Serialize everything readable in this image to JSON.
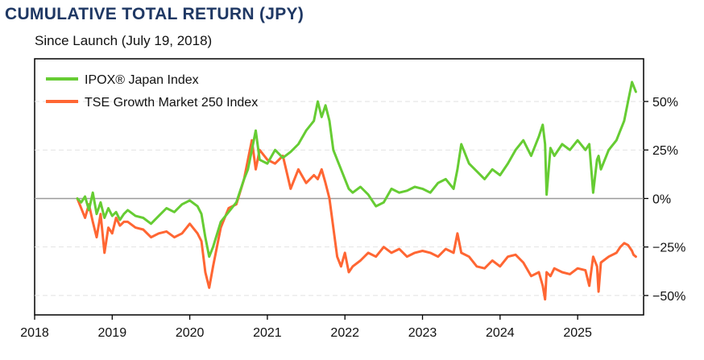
{
  "chart_data": {
    "type": "line",
    "title": "CUMULATIVE TOTAL RETURN (JPY)",
    "subtitle": "Since Launch (July 19, 2018)",
    "xlabel": "",
    "ylabel": "",
    "xlim": [
      2018.0,
      2025.85
    ],
    "ylim": [
      -60,
      72
    ],
    "x_ticks": [
      2018,
      2019,
      2020,
      2021,
      2022,
      2023,
      2024,
      2025
    ],
    "x_tick_labels": [
      "2018",
      "2019",
      "2020",
      "2021",
      "2022",
      "2023",
      "2024",
      "2025"
    ],
    "y_ticks": [
      50,
      25,
      0,
      -25,
      -50
    ],
    "y_tick_labels": [
      "50%",
      "25%",
      "0%",
      "−25%",
      "−50%"
    ],
    "grid": "horizontal dashed",
    "legend_position": "top-left",
    "series": [
      {
        "name": "IPOX® Japan Index",
        "color": "#66cc33",
        "x": [
          2018.55,
          2018.6,
          2018.65,
          2018.7,
          2018.75,
          2018.8,
          2018.85,
          2018.9,
          2018.95,
          2019.0,
          2019.05,
          2019.1,
          2019.15,
          2019.2,
          2019.3,
          2019.4,
          2019.5,
          2019.6,
          2019.7,
          2019.8,
          2019.9,
          2020.0,
          2020.1,
          2020.15,
          2020.2,
          2020.25,
          2020.3,
          2020.4,
          2020.5,
          2020.6,
          2020.7,
          2020.75,
          2020.8,
          2020.85,
          2020.9,
          2021.0,
          2021.1,
          2021.2,
          2021.3,
          2021.4,
          2021.5,
          2021.6,
          2021.65,
          2021.7,
          2021.75,
          2021.8,
          2021.85,
          2021.9,
          2021.95,
          2022.0,
          2022.05,
          2022.1,
          2022.2,
          2022.3,
          2022.4,
          2022.5,
          2022.6,
          2022.7,
          2022.8,
          2022.9,
          2023.0,
          2023.1,
          2023.2,
          2023.3,
          2023.4,
          2023.45,
          2023.5,
          2023.6,
          2023.7,
          2023.8,
          2023.9,
          2024.0,
          2024.1,
          2024.2,
          2024.3,
          2024.4,
          2024.5,
          2024.55,
          2024.58,
          2024.6,
          2024.65,
          2024.7,
          2024.8,
          2024.9,
          2025.0,
          2025.1,
          2025.15,
          2025.2,
          2025.25,
          2025.27,
          2025.3,
          2025.4,
          2025.5,
          2025.55,
          2025.6,
          2025.65,
          2025.7,
          2025.72,
          2025.75
        ],
        "y": [
          0,
          -2,
          1,
          -6,
          3,
          -8,
          -2,
          -10,
          -5,
          -9,
          -7,
          -11,
          -8,
          -6,
          -9,
          -10,
          -13,
          -9,
          -5,
          -7,
          -3,
          -1,
          -4,
          -8,
          -20,
          -30,
          -25,
          -12,
          -7,
          -2,
          10,
          15,
          25,
          35,
          20,
          18,
          25,
          21,
          24,
          28,
          35,
          40,
          50,
          42,
          48,
          40,
          25,
          20,
          15,
          10,
          5,
          3,
          6,
          2,
          -4,
          -2,
          5,
          3,
          4,
          6,
          5,
          3,
          8,
          10,
          5,
          15,
          28,
          18,
          14,
          10,
          15,
          12,
          18,
          25,
          30,
          22,
          32,
          38,
          28,
          2,
          26,
          22,
          28,
          25,
          30,
          25,
          28,
          3,
          20,
          22,
          15,
          25,
          30,
          35,
          40,
          50,
          60,
          58,
          55
        ]
      },
      {
        "name": "TSE Growth Market 250 Index",
        "color": "#ff6633",
        "x": [
          2018.55,
          2018.6,
          2018.65,
          2018.7,
          2018.75,
          2018.8,
          2018.85,
          2018.9,
          2018.95,
          2019.0,
          2019.05,
          2019.1,
          2019.15,
          2019.2,
          2019.3,
          2019.4,
          2019.5,
          2019.6,
          2019.7,
          2019.8,
          2019.9,
          2020.0,
          2020.1,
          2020.15,
          2020.2,
          2020.25,
          2020.3,
          2020.4,
          2020.5,
          2020.6,
          2020.7,
          2020.75,
          2020.8,
          2020.85,
          2020.9,
          2021.0,
          2021.1,
          2021.2,
          2021.3,
          2021.4,
          2021.5,
          2021.6,
          2021.65,
          2021.7,
          2021.75,
          2021.8,
          2021.85,
          2021.9,
          2021.95,
          2022.0,
          2022.05,
          2022.1,
          2022.2,
          2022.3,
          2022.4,
          2022.5,
          2022.6,
          2022.7,
          2022.8,
          2022.9,
          2023.0,
          2023.1,
          2023.2,
          2023.3,
          2023.4,
          2023.45,
          2023.5,
          2023.6,
          2023.7,
          2023.8,
          2023.9,
          2024.0,
          2024.1,
          2024.2,
          2024.3,
          2024.4,
          2024.5,
          2024.55,
          2024.58,
          2024.6,
          2024.65,
          2024.7,
          2024.8,
          2024.9,
          2025.0,
          2025.1,
          2025.15,
          2025.2,
          2025.25,
          2025.27,
          2025.3,
          2025.4,
          2025.5,
          2025.55,
          2025.6,
          2025.65,
          2025.7,
          2025.72,
          2025.75
        ],
        "y": [
          0,
          -5,
          -10,
          -3,
          -12,
          -20,
          -8,
          -28,
          -15,
          -18,
          -10,
          -14,
          -12,
          -12,
          -15,
          -16,
          -20,
          -18,
          -17,
          -20,
          -18,
          -13,
          -18,
          -22,
          -38,
          -46,
          -35,
          -15,
          -5,
          -3,
          10,
          20,
          30,
          15,
          25,
          20,
          18,
          22,
          5,
          15,
          8,
          12,
          10,
          15,
          8,
          0,
          -15,
          -30,
          -35,
          -28,
          -38,
          -35,
          -32,
          -28,
          -30,
          -25,
          -28,
          -26,
          -30,
          -28,
          -27,
          -28,
          -30,
          -26,
          -28,
          -18,
          -28,
          -30,
          -35,
          -36,
          -32,
          -35,
          -30,
          -29,
          -33,
          -40,
          -38,
          -45,
          -52,
          -38,
          -40,
          -36,
          -38,
          -39,
          -36,
          -37,
          -45,
          -30,
          -35,
          -48,
          -33,
          -30,
          -28,
          -25,
          -23,
          -24,
          -27,
          -29,
          -30
        ]
      }
    ]
  }
}
